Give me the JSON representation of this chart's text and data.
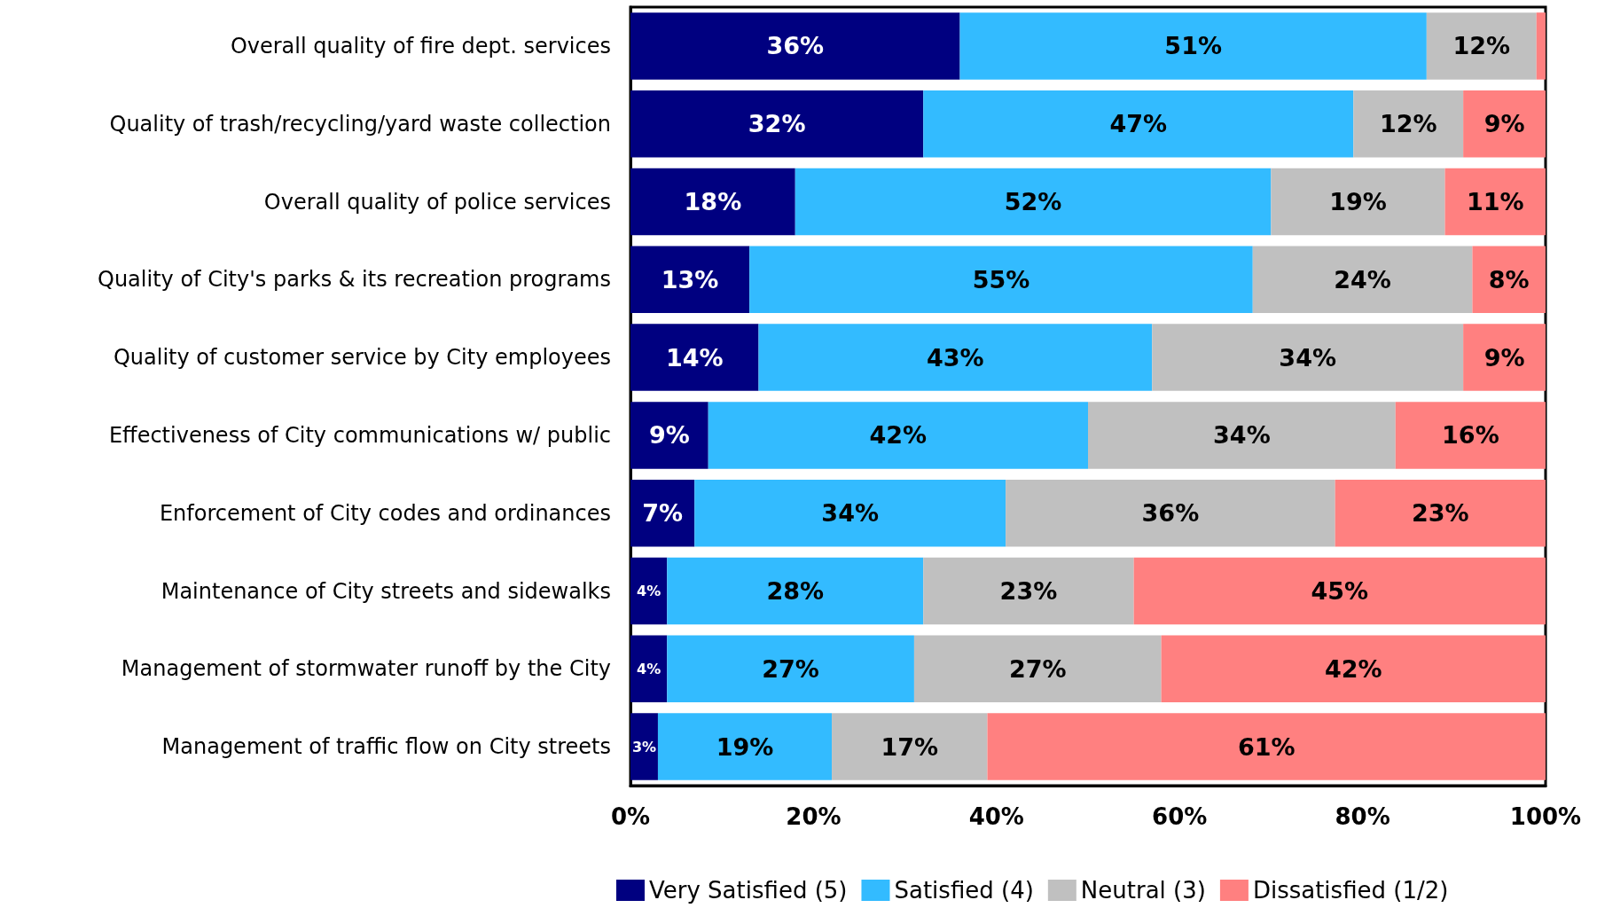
{
  "chart_data": {
    "type": "bar",
    "orientation": "horizontal",
    "stacked": true,
    "categories": [
      "Overall quality of fire dept. services",
      "Quality of trash/recycling/yard waste collection",
      "Overall quality of police services",
      "Quality of City's parks & its recreation programs",
      "Quality of customer service by City employees",
      "Effectiveness of City communications w/ public",
      "Enforcement of City codes and ordinances",
      "Maintenance of City streets and sidewalks",
      "Management of stormwater runoff by the City",
      "Management of traffic flow on City streets"
    ],
    "series": [
      {
        "name": "Very Satisfied (5)",
        "color": "#000080",
        "values": [
          36,
          32,
          18,
          13,
          14,
          8.5,
          7,
          4,
          4,
          3
        ],
        "value_labels": [
          "36%",
          "32%",
          "18%",
          "13%",
          "14%",
          "9%",
          "7%",
          "4%",
          "4%",
          "3%"
        ]
      },
      {
        "name": "Satisfied (4)",
        "color": "#33bbff",
        "values": [
          51,
          47,
          52,
          55,
          43,
          41.5,
          34,
          28,
          27,
          19
        ],
        "value_labels": [
          "51%",
          "47%",
          "52%",
          "55%",
          "43%",
          "42%",
          "34%",
          "28%",
          "27%",
          "19%"
        ]
      },
      {
        "name": "Neutral (3)",
        "color": "#c0c0c0",
        "values": [
          12,
          12,
          19,
          24,
          34,
          33.6,
          36,
          23,
          27,
          17
        ],
        "value_labels": [
          "12%",
          "12%",
          "19%",
          "24%",
          "34%",
          "34%",
          "36%",
          "23%",
          "27%",
          "17%"
        ]
      },
      {
        "name": "Dissatisfied (1/2)",
        "color": "#ff8080",
        "values": [
          1,
          9,
          11,
          8,
          9,
          16.4,
          23,
          45,
          42,
          61
        ],
        "value_labels": [
          null,
          "9%",
          "11%",
          "8%",
          "9%",
          "16%",
          "23%",
          "45%",
          "42%",
          "61%"
        ]
      }
    ],
    "xlim": [
      0,
      100
    ],
    "xticks": [
      {
        "value": 0,
        "label": "0%"
      },
      {
        "value": 20,
        "label": "20%"
      },
      {
        "value": 40,
        "label": "40%"
      },
      {
        "value": 60,
        "label": "60%"
      },
      {
        "value": 80,
        "label": "80%"
      },
      {
        "value": 100,
        "label": "100%"
      }
    ],
    "grid": false,
    "legend": "bottom"
  }
}
